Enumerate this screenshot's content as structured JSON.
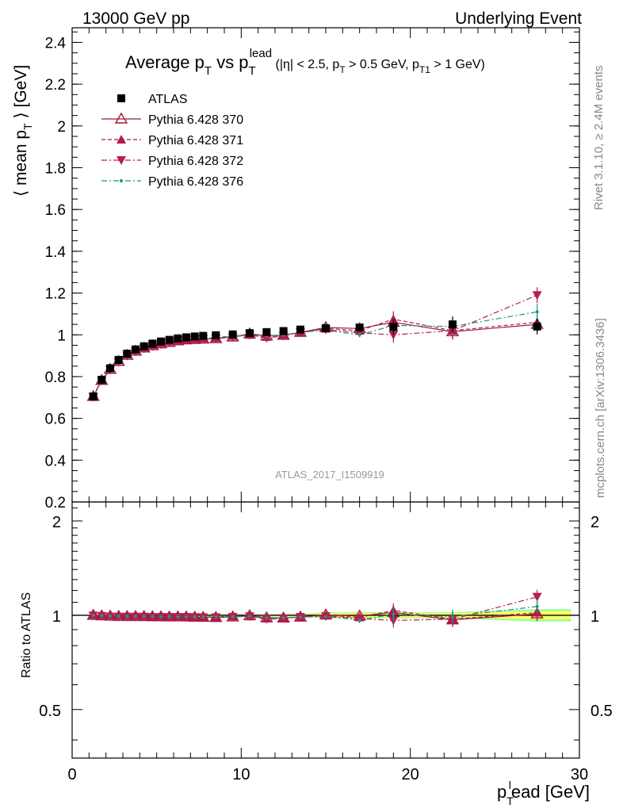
{
  "header": {
    "left": "13000 GeV pp",
    "right": "Underlying Event"
  },
  "side_labels": {
    "rivet": "Rivet 3.1.10, ≥ 2.4M events",
    "mcplots": "mcplots.cern.ch [arXiv:1306.3436]"
  },
  "watermark": "ATLAS_2017_I1509919",
  "chart_data": [
    {
      "panel": "main",
      "type": "scatter",
      "title": {
        "p1": "Average p",
        "p1sub": "T",
        "p2": " vs p",
        "p2sub": "T",
        "p2sup": "lead",
        "c1": " (|η| < 2.5, p",
        "c1sub": "T",
        "c2": " > 0.5 GeV, p",
        "c2sub": "T1",
        "c3": " > 1 GeV)"
      },
      "ylabel": {
        "a": "⟨ mean p",
        "sub": "T",
        "b": " ⟩ [GeV]"
      },
      "xlim": [
        0,
        30
      ],
      "ylim": [
        0.2,
        2.47
      ],
      "xticks": [
        "0",
        "10",
        "20",
        "30"
      ],
      "yticks": [
        "0.2",
        "0.4",
        "0.6",
        "0.8",
        "1",
        "1.2",
        "1.4",
        "1.6",
        "1.8",
        "2",
        "2.2",
        "2.4"
      ],
      "legend_position": "top-left",
      "x": [
        1.25,
        1.75,
        2.25,
        2.75,
        3.25,
        3.75,
        4.25,
        4.75,
        5.25,
        5.75,
        6.25,
        6.75,
        7.25,
        7.75,
        8.5,
        9.5,
        10.5,
        11.5,
        12.5,
        13.5,
        15.0,
        17.0,
        19.0,
        22.5,
        27.5
      ],
      "series": [
        {
          "name": "ATLAS",
          "color": "#000000",
          "marker": "square",
          "line": "none",
          "values": [
            0.705,
            0.785,
            0.84,
            0.88,
            0.91,
            0.93,
            0.945,
            0.958,
            0.968,
            0.976,
            0.983,
            0.988,
            0.992,
            0.995,
            0.998,
            1.002,
            1.008,
            1.013,
            1.018,
            1.025,
            1.032,
            1.035,
            1.038,
            1.05,
            1.04
          ]
        },
        {
          "name": "Pythia 6.428 370",
          "color": "#9b1c31",
          "marker": "triangle-up-open",
          "line": "solid",
          "values": [
            0.705,
            0.782,
            0.835,
            0.873,
            0.902,
            0.922,
            0.937,
            0.948,
            0.957,
            0.964,
            0.972,
            0.976,
            0.978,
            0.98,
            0.982,
            0.99,
            1.005,
            0.995,
            0.998,
            1.012,
            1.035,
            1.03,
            1.06,
            1.015,
            1.05
          ]
        },
        {
          "name": "Pythia 6.428 371",
          "color": "#b5164e",
          "marker": "triangle-up",
          "line": "dashed",
          "values": [
            0.708,
            0.786,
            0.84,
            0.878,
            0.906,
            0.926,
            0.94,
            0.951,
            0.96,
            0.968,
            0.974,
            0.978,
            0.981,
            0.983,
            0.986,
            0.995,
            1.0,
            0.99,
            1.0,
            1.01,
            1.03,
            1.02,
            1.075,
            1.02,
            1.06
          ]
        },
        {
          "name": "Pythia 6.428 372",
          "color": "#b81d4f",
          "marker": "triangle-down",
          "line": "dashdot",
          "values": [
            0.703,
            0.78,
            0.832,
            0.87,
            0.9,
            0.92,
            0.935,
            0.946,
            0.955,
            0.963,
            0.97,
            0.975,
            0.978,
            0.98,
            0.983,
            0.99,
            1.0,
            0.985,
            0.995,
            1.012,
            1.025,
            1.01,
            1.0,
            1.02,
            1.19
          ]
        },
        {
          "name": "Pythia 6.428 376",
          "color": "#179a86",
          "marker": "dot",
          "line": "dashdot",
          "values": [
            0.706,
            0.783,
            0.836,
            0.874,
            0.903,
            0.923,
            0.938,
            0.949,
            0.958,
            0.966,
            0.972,
            0.977,
            0.98,
            0.982,
            0.985,
            0.992,
            1.0,
            0.995,
            1.0,
            1.012,
            1.022,
            1.0,
            1.045,
            1.04,
            1.11
          ]
        }
      ]
    },
    {
      "panel": "ratio",
      "type": "scatter",
      "ylabel": "Ratio to ATLAS",
      "xlabel": {
        "a": "p",
        "sub": "T",
        "sup": "l",
        "b": "ead [GeV]"
      },
      "xlim": [
        0,
        30
      ],
      "ylim": [
        0.35,
        2.3
      ],
      "scale": "log",
      "yticks": [
        "0.5",
        "1",
        "2"
      ],
      "xticks": [
        "0",
        "10",
        "20",
        "30"
      ],
      "band_color_inner": "#ffff66",
      "band_color_outer": "#99ff99",
      "x": [
        1.25,
        1.75,
        2.25,
        2.75,
        3.25,
        3.75,
        4.25,
        4.75,
        5.25,
        5.75,
        6.25,
        6.75,
        7.25,
        7.75,
        8.5,
        9.5,
        10.5,
        11.5,
        12.5,
        13.5,
        15.0,
        17.0,
        19.0,
        22.5,
        27.5
      ],
      "series": [
        {
          "name": "Pythia 6.428 370",
          "color": "#9b1c31",
          "marker": "triangle-up-open",
          "line": "solid",
          "values": [
            1.0,
            0.996,
            0.994,
            0.992,
            0.991,
            0.991,
            0.991,
            0.99,
            0.989,
            0.988,
            0.989,
            0.988,
            0.986,
            0.985,
            0.984,
            0.988,
            0.997,
            0.982,
            0.98,
            0.987,
            1.003,
            0.995,
            1.021,
            0.967,
            1.01
          ]
        },
        {
          "name": "Pythia 6.428 371",
          "color": "#b5164e",
          "marker": "triangle-up",
          "line": "dashed",
          "values": [
            1.004,
            1.001,
            1.0,
            0.998,
            0.996,
            0.996,
            0.995,
            0.993,
            0.992,
            0.992,
            0.991,
            0.99,
            0.989,
            0.988,
            0.988,
            0.993,
            0.992,
            0.977,
            0.982,
            0.985,
            0.998,
            0.985,
            1.036,
            0.971,
            1.02
          ]
        },
        {
          "name": "Pythia 6.428 372",
          "color": "#b81d4f",
          "marker": "triangle-down",
          "line": "dashdot",
          "values": [
            0.997,
            0.994,
            0.99,
            0.989,
            0.989,
            0.989,
            0.989,
            0.987,
            0.987,
            0.987,
            0.987,
            0.987,
            0.986,
            0.985,
            0.985,
            0.988,
            0.992,
            0.972,
            0.977,
            0.987,
            0.993,
            0.976,
            0.963,
            0.971,
            1.145
          ]
        },
        {
          "name": "Pythia 6.428 376",
          "color": "#179a86",
          "marker": "dot",
          "line": "dashdot",
          "values": [
            1.001,
            0.997,
            0.995,
            0.993,
            0.992,
            0.992,
            0.993,
            0.991,
            0.99,
            0.99,
            0.989,
            0.989,
            0.988,
            0.987,
            0.987,
            0.99,
            0.992,
            0.982,
            0.982,
            0.987,
            0.99,
            0.966,
            1.007,
            0.99,
            1.067
          ]
        }
      ]
    }
  ]
}
